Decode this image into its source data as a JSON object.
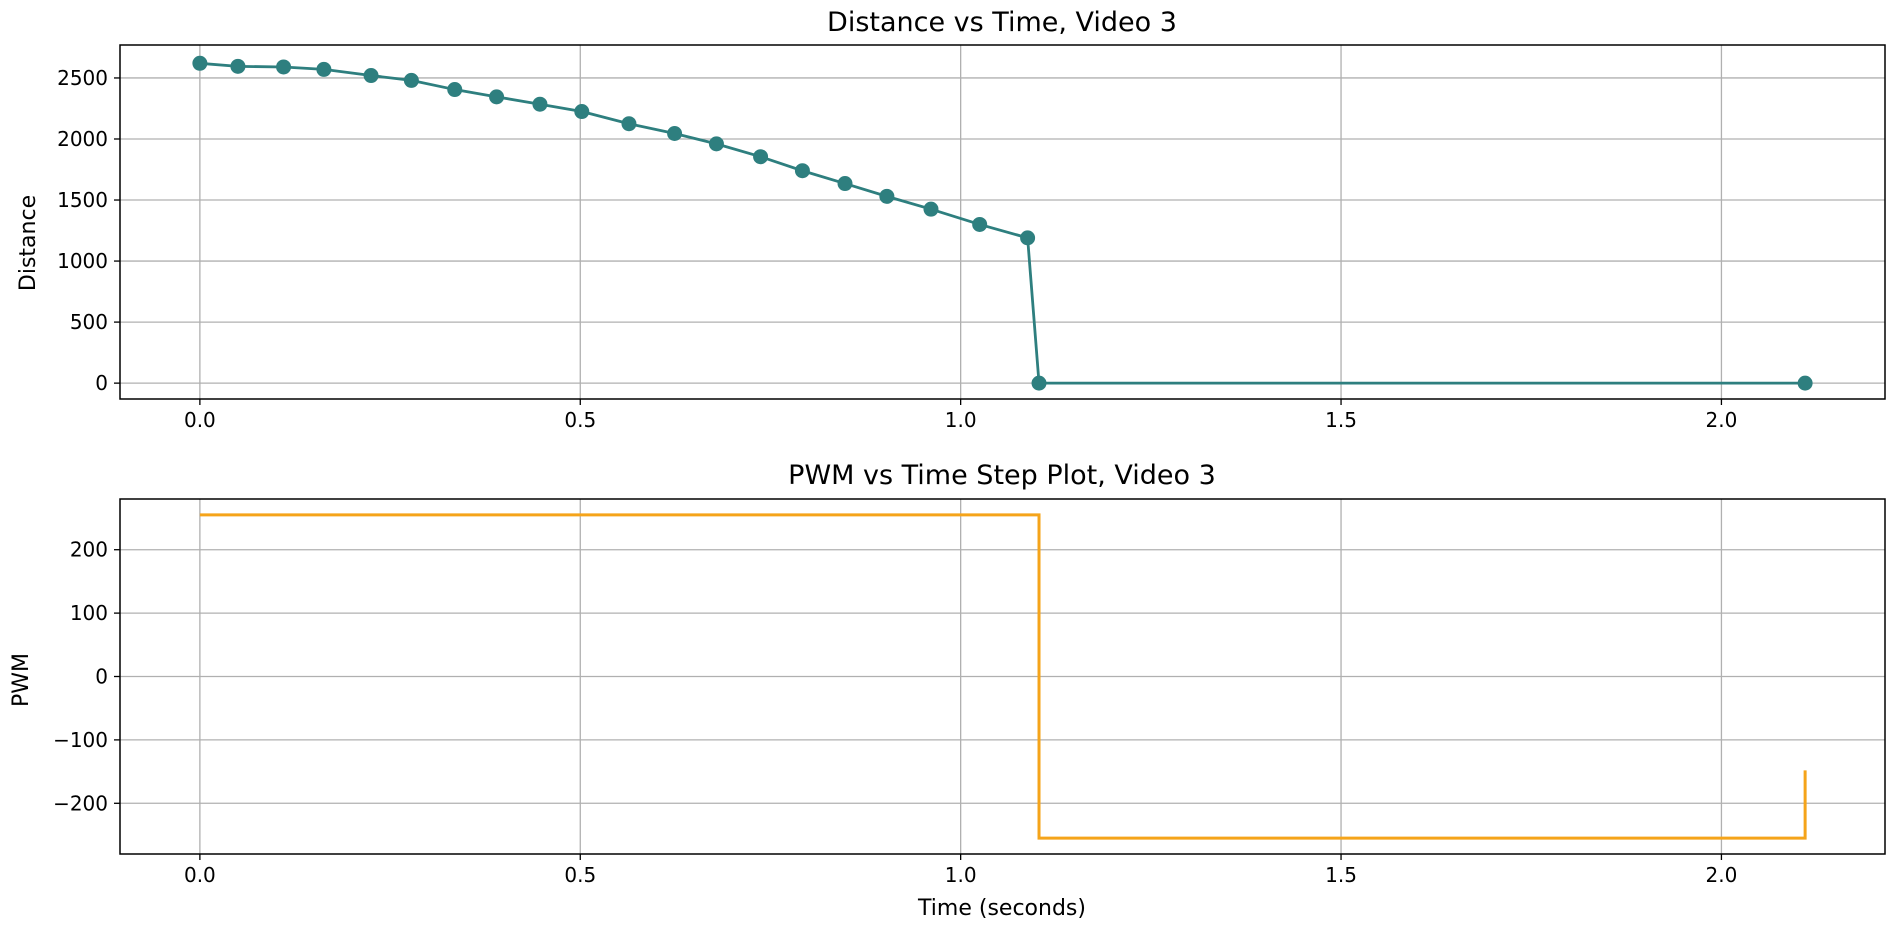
{
  "chart_data": [
    {
      "type": "line",
      "title": "Distance vs Time, Video 3",
      "xlabel": "",
      "ylabel": "Distance",
      "xlim": [
        -0.105,
        2.215
      ],
      "ylim": [
        -130,
        2770
      ],
      "xticks": [
        0.0,
        0.5,
        1.0,
        1.5,
        2.0
      ],
      "xtick_labels": [
        "0.0",
        "0.5",
        "1.0",
        "1.5",
        "2.0"
      ],
      "yticks": [
        0,
        500,
        1000,
        1500,
        2000,
        2500
      ],
      "ytick_labels": [
        "0",
        "500",
        "1000",
        "1500",
        "2000",
        "2500"
      ],
      "grid": true,
      "series": [
        {
          "color": "#2e7f7f",
          "marker": "circle",
          "line_style": "solid",
          "x": [
            0.0,
            0.05,
            0.11,
            0.163,
            0.225,
            0.278,
            0.335,
            0.39,
            0.447,
            0.502,
            0.564,
            0.624,
            0.679,
            0.737,
            0.792,
            0.848,
            0.903,
            0.961,
            1.025,
            1.088,
            1.103,
            2.11
          ],
          "y": [
            2620,
            2595,
            2590,
            2570,
            2520,
            2480,
            2405,
            2345,
            2285,
            2225,
            2125,
            2045,
            1960,
            1855,
            1740,
            1635,
            1530,
            1425,
            1300,
            1190,
            0,
            0
          ]
        }
      ]
    },
    {
      "type": "line",
      "title": "PWM vs Time Step Plot, Video 3",
      "xlabel": "Time (seconds)",
      "ylabel": "PWM",
      "xlim": [
        -0.105,
        2.215
      ],
      "ylim": [
        -280,
        280
      ],
      "xticks": [
        0.0,
        0.5,
        1.0,
        1.5,
        2.0
      ],
      "xtick_labels": [
        "0.0",
        "0.5",
        "1.0",
        "1.5",
        "2.0"
      ],
      "yticks": [
        -200,
        -100,
        0,
        100,
        200
      ],
      "ytick_labels": [
        "−200",
        "−100",
        "0",
        "100",
        "200"
      ],
      "grid": true,
      "series": [
        {
          "color": "#f5a41a",
          "marker": "none",
          "line_style": "step",
          "x": [
            0.0,
            1.103,
            1.103,
            2.11,
            2.11
          ],
          "y": [
            255,
            255,
            -255,
            -255,
            -148
          ]
        }
      ]
    }
  ]
}
